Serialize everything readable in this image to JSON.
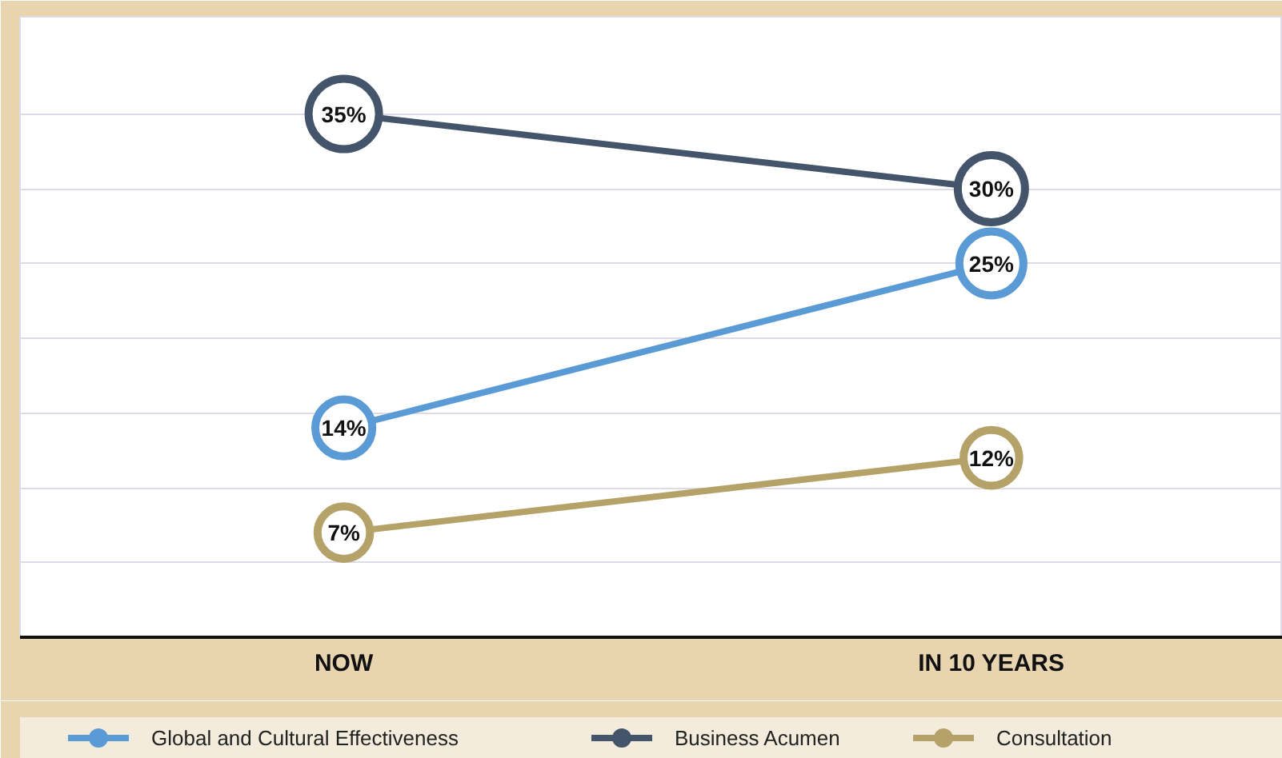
{
  "chart_data": {
    "type": "line",
    "categories": [
      "NOW",
      "IN 10 YEARS"
    ],
    "series": [
      {
        "name": "Global and Cultural Effectiveness",
        "color": "#5b9bd5",
        "values": [
          14,
          25
        ],
        "value_labels": [
          "14%",
          "25%"
        ]
      },
      {
        "name": "Business Acumen",
        "color": "#44546a",
        "values": [
          35,
          30
        ],
        "value_labels": [
          "35%",
          "30%"
        ]
      },
      {
        "name": "Consultation",
        "color": "#b5a268",
        "values": [
          7,
          12
        ],
        "value_labels": [
          "7%",
          "12%"
        ]
      }
    ],
    "ylim": [
      0,
      41.5
    ],
    "yticks": [
      {
        "value": 5,
        "label": null
      },
      {
        "value": 10,
        "label": null
      },
      {
        "value": 15,
        "label": null
      },
      {
        "value": 20,
        "label": null
      },
      {
        "value": 25,
        "label": null
      },
      {
        "value": 30,
        "label": null
      },
      {
        "value": 35,
        "label": null
      }
    ],
    "tick_labels": "x",
    "grid": "y",
    "legend": "bottom",
    "marker": "circle",
    "line_style": "solid"
  }
}
